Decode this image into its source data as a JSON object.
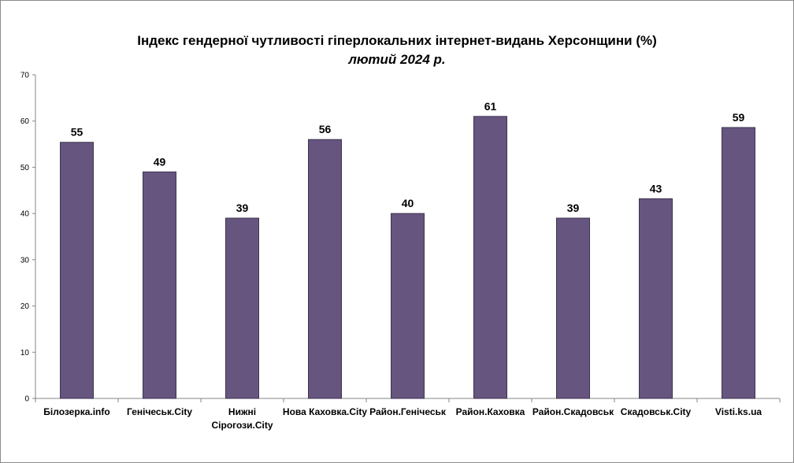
{
  "chart_data": {
    "type": "bar",
    "title": "Індекс гендерної чутливості гіперлокальних інтернет-видань Херсонщини (%)",
    "subtitle": "лютий 2024 р.",
    "categories": [
      [
        "Білозерка.info"
      ],
      [
        "Генічеськ.City"
      ],
      [
        "Нижні",
        "Сірогози.City"
      ],
      [
        "Нова  Каховка.City"
      ],
      [
        "Район.Генічеськ"
      ],
      [
        "Район.Каховка"
      ],
      [
        "Район.Скадовськ"
      ],
      [
        "Скадовськ.City"
      ],
      [
        "Visti.ks.ua"
      ]
    ],
    "values": [
      55.4,
      49,
      39,
      56,
      40,
      61,
      39,
      43.2,
      58.6
    ],
    "data_labels": [
      "55",
      "49",
      "39",
      "56",
      "40",
      "61",
      "39",
      "43",
      "59"
    ],
    "ylim": [
      0,
      70
    ],
    "yticks": [
      0,
      10,
      20,
      30,
      40,
      50,
      60,
      70
    ],
    "xlabel": "",
    "ylabel": "",
    "grid": false,
    "legend": "none",
    "bar_color": "#65557f",
    "bar_stroke": "#3f3450"
  }
}
